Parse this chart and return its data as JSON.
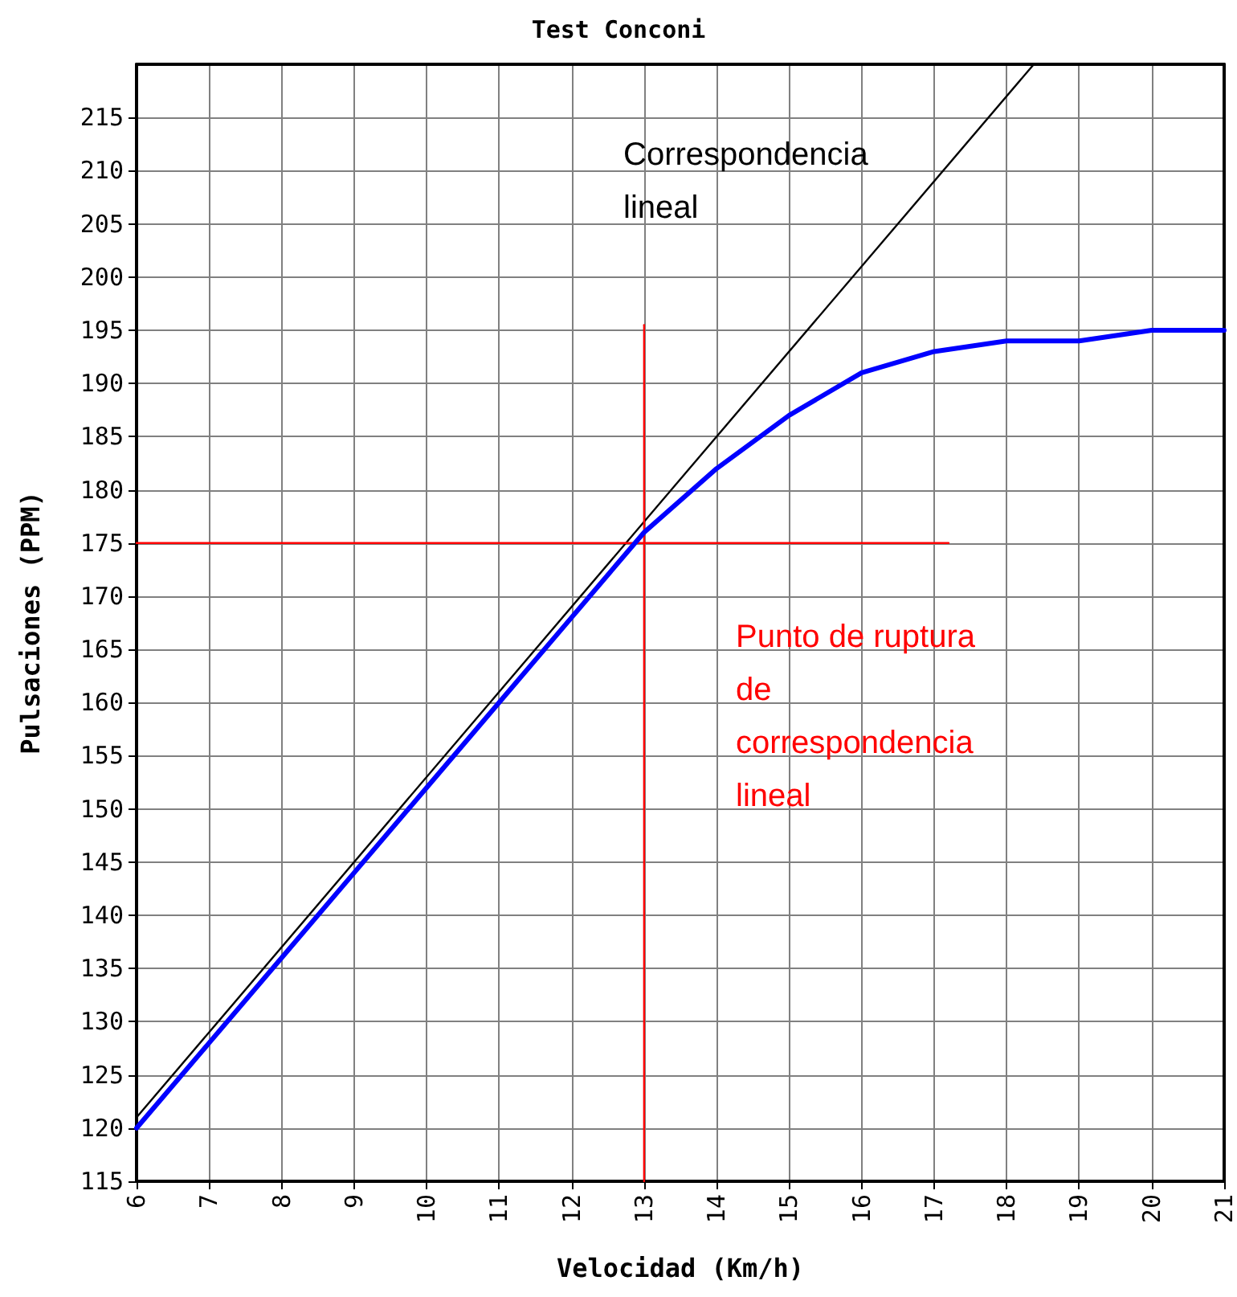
{
  "chart_data": {
    "type": "line",
    "title": "Test Conconi",
    "xlabel": "Velocidad (Km/h)",
    "ylabel": "Pulsaciones (PPM)",
    "xlim": [
      6,
      21
    ],
    "xticks": [
      6,
      7,
      8,
      9,
      10,
      11,
      12,
      13,
      14,
      15,
      16,
      17,
      18,
      19,
      20,
      21
    ],
    "ylim": [
      115,
      220
    ],
    "yticks": [
      115,
      120,
      125,
      130,
      135,
      140,
      145,
      150,
      155,
      160,
      165,
      170,
      175,
      180,
      185,
      190,
      195,
      200,
      205,
      210,
      215
    ],
    "grid": true,
    "marker": "none",
    "line_style": "solid",
    "series": [
      {
        "color": "#000000",
        "x": [
          6,
          18.375
        ],
        "values": [
          121,
          220
        ]
      },
      {
        "color": "#ff0000",
        "x": [
          6,
          17.2
        ],
        "values": [
          175,
          175
        ]
      },
      {
        "color": "#ff0000",
        "x": [
          13,
          13
        ],
        "values": [
          115,
          195.5
        ]
      },
      {
        "color": "#0000ff",
        "x": [
          6,
          7,
          8,
          9,
          10,
          11,
          12,
          13,
          14,
          15,
          16,
          17,
          18,
          19,
          20,
          21
        ],
        "values": [
          120,
          128,
          136,
          144,
          152,
          160,
          168,
          176,
          182,
          187,
          191,
          193,
          194,
          194,
          195,
          195
        ]
      }
    ],
    "annotations": [
      "Correspondencia lineal",
      "Punto de ruptura de correspondencia lineal"
    ]
  }
}
